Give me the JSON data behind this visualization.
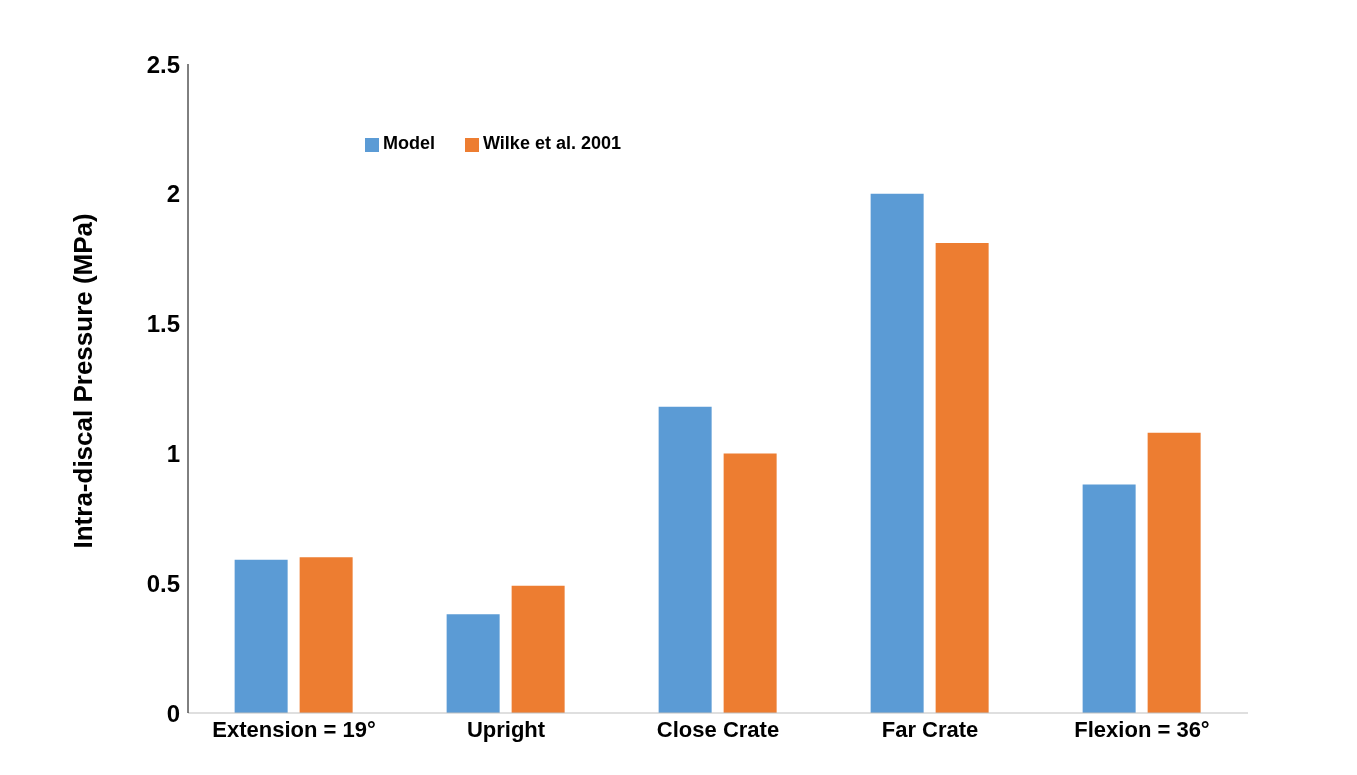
{
  "chart_data": {
    "type": "bar",
    "ylabel": "Intra-discal Pressure (MPa)",
    "categories": [
      "Extension = 19°",
      "Upright",
      "Close Crate",
      "Far Crate",
      "Flexion = 36°"
    ],
    "series": [
      {
        "name": "Model",
        "color": "#5b9bd5",
        "values": [
          0.59,
          0.38,
          1.18,
          2.0,
          0.88
        ]
      },
      {
        "name": "Wilke et al. 2001",
        "color": "#ed7d31",
        "values": [
          0.6,
          0.49,
          1.0,
          1.81,
          1.08
        ]
      }
    ],
    "ylim": [
      0,
      2.5
    ],
    "yticks": [
      0,
      0.5,
      1,
      1.5,
      2,
      2.5
    ],
    "grid": false,
    "legend": "top"
  }
}
